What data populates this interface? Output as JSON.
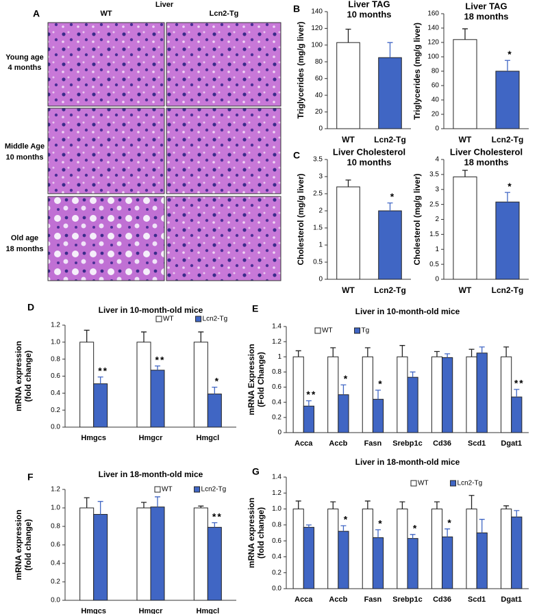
{
  "panel_a": {
    "panel_label": "A",
    "title": "Liver",
    "columns": [
      "WT",
      "Lcn2-Tg"
    ],
    "rows": [
      [
        "Young age",
        "4 months"
      ],
      [
        "Middle Age",
        "10 months"
      ],
      [
        "Old age",
        "18 months"
      ]
    ]
  },
  "chart_data": [
    {
      "type": "bar",
      "panel_label": "B",
      "title": "Liver TAG",
      "subtitle": "10 months",
      "ylabel": [
        "Triglycerides (mg/g liver)"
      ],
      "categories": [
        "WT",
        "Lcn2-Tg"
      ],
      "values": [
        103,
        85
      ],
      "errors": [
        16,
        18
      ],
      "colors": [
        "#ffffff",
        "#4066c4"
      ],
      "significance": [
        null,
        null
      ],
      "ylim": [
        0,
        140
      ],
      "yticks": [
        0,
        20,
        40,
        60,
        80,
        100,
        120,
        140
      ]
    },
    {
      "type": "bar",
      "title": "Liver TAG",
      "subtitle": "18 months",
      "ylabel": [
        "Triglycerides (mg/g liver)"
      ],
      "categories": [
        "WT",
        "Lcn2-Tg"
      ],
      "values": [
        124,
        80
      ],
      "errors": [
        15,
        15
      ],
      "colors": [
        "#ffffff",
        "#4066c4"
      ],
      "significance": [
        null,
        "*"
      ],
      "ylim": [
        0,
        160
      ],
      "yticks": [
        0,
        20,
        40,
        60,
        80,
        100,
        120,
        140,
        160
      ]
    },
    {
      "type": "bar",
      "panel_label": "C",
      "title": "Liver Cholesterol",
      "subtitle": "10 months",
      "ylabel": [
        "Cholesterol (mg/g liver)"
      ],
      "categories": [
        "WT",
        "Lcn2-Tg"
      ],
      "values": [
        2.7,
        2.0
      ],
      "errors": [
        0.2,
        0.23
      ],
      "colors": [
        "#ffffff",
        "#4066c4"
      ],
      "significance": [
        null,
        "*"
      ],
      "ylim": [
        0,
        3.5
      ],
      "yticks": [
        0,
        0.5,
        1,
        1.5,
        2,
        2.5,
        3,
        3.5
      ]
    },
    {
      "type": "bar",
      "title": "Liver Cholesterol",
      "subtitle": "18 months",
      "ylabel": [
        "Cholesterol (mg/g liver)"
      ],
      "categories": [
        "WT",
        "Lcn2-Tg"
      ],
      "values": [
        3.42,
        2.58
      ],
      "errors": [
        0.22,
        0.32
      ],
      "colors": [
        "#ffffff",
        "#4066c4"
      ],
      "significance": [
        null,
        "*"
      ],
      "ylim": [
        0,
        4
      ],
      "yticks": [
        0,
        0.5,
        1,
        1.5,
        2,
        2.5,
        3,
        3.5,
        4
      ]
    },
    {
      "type": "grouped_bar",
      "panel_label": "D",
      "title": "Liver in 10-month-old mice",
      "ylabel": [
        "mRNA expression",
        "(fold change)"
      ],
      "categories": [
        "Hmgcs",
        "Hmgcr",
        "Hmgcl"
      ],
      "series": [
        {
          "name": "WT",
          "color": "#ffffff",
          "values": [
            1,
            1,
            1
          ],
          "errors": [
            0.14,
            0.12,
            0.12
          ],
          "significance": [
            null,
            null,
            null
          ]
        },
        {
          "name": "Lcn2-Tg",
          "color": "#4066c4",
          "values": [
            0.51,
            0.67,
            0.39
          ],
          "errors": [
            0.08,
            0.05,
            0.08
          ],
          "significance": [
            "**",
            "**",
            "*"
          ]
        }
      ],
      "ylim": [
        0,
        1.2
      ],
      "yticks": [
        {
          "value": 0,
          "label": "0.0"
        },
        {
          "value": 0.2,
          "label": "0.2"
        },
        {
          "value": 0.4,
          "label": "0.4"
        },
        {
          "value": 0.6,
          "label": "0.6"
        },
        {
          "value": 0.8,
          "label": "0.8"
        },
        {
          "value": 1,
          "label": "1.0"
        },
        {
          "value": 1.2,
          "label": "1.2"
        }
      ]
    },
    {
      "type": "grouped_bar",
      "panel_label": "E",
      "title": "Liver in 10-month-old mice",
      "ylabel": [
        "mRNA Expression",
        "(Fold Change)"
      ],
      "categories": [
        "Acca",
        "Accb",
        "Fasn",
        "Srebp1c",
        "Cd36",
        "Scd1",
        "Dgat1"
      ],
      "series": [
        {
          "name": "WT",
          "color": "#ffffff",
          "values": [
            1,
            1,
            1,
            1,
            1,
            1,
            1
          ],
          "errors": [
            0.08,
            0.12,
            0.12,
            0.15,
            0.07,
            0.1,
            0.13
          ],
          "significance": [
            null,
            null,
            null,
            null,
            null,
            null,
            null
          ]
        },
        {
          "name": "Tg",
          "color": "#4066c4",
          "values": [
            0.35,
            0.5,
            0.44,
            0.73,
            0.99,
            1.05,
            0.47
          ],
          "errors": [
            0.07,
            0.13,
            0.12,
            0.07,
            0.05,
            0.08,
            0.1
          ],
          "significance": [
            "**",
            "*",
            "*",
            null,
            null,
            null,
            "**"
          ]
        }
      ],
      "ylim": [
        0,
        1.4
      ],
      "yticks": [
        0,
        0.2,
        0.4,
        0.6,
        0.8,
        1,
        1.2,
        1.4
      ]
    },
    {
      "type": "grouped_bar",
      "panel_label": "F",
      "title": "Liver in 18-month-old mice",
      "ylabel": [
        "mRNA expression",
        "(fold change)"
      ],
      "categories": [
        "Hmgcs",
        "Hmgcr",
        "Hmgcl"
      ],
      "series": [
        {
          "name": "WT",
          "color": "#ffffff",
          "values": [
            1,
            1,
            1
          ],
          "errors": [
            0.11,
            0.06,
            0.02
          ],
          "significance": [
            null,
            null,
            null
          ]
        },
        {
          "name": "Lcn2-Tg",
          "color": "#4066c4",
          "values": [
            0.93,
            1.01,
            0.79
          ],
          "errors": [
            0.14,
            0.11,
            0.05
          ],
          "significance": [
            null,
            null,
            "**"
          ]
        }
      ],
      "ylim": [
        0,
        1.2
      ],
      "yticks": [
        {
          "value": 0,
          "label": "0.0"
        },
        {
          "value": 0.2,
          "label": "0.2"
        },
        {
          "value": 0.4,
          "label": "0.4"
        },
        {
          "value": 0.6,
          "label": "0.6"
        },
        {
          "value": 0.8,
          "label": "0.8"
        },
        {
          "value": 1,
          "label": "1.0"
        },
        {
          "value": 1.2,
          "label": "1.2"
        }
      ]
    },
    {
      "type": "grouped_bar",
      "panel_label": "G",
      "title": "Liver in 18-month-old mice",
      "ylabel": [
        "mRNA expression",
        "(fold change)"
      ],
      "categories": [
        "Acca",
        "Accb",
        "Fasn",
        "Srebp1c",
        "Cd36",
        "Scd1",
        "Dgat1"
      ],
      "series": [
        {
          "name": "WT",
          "color": "#ffffff",
          "values": [
            1,
            1,
            1,
            1,
            1,
            1,
            1
          ],
          "errors": [
            0.1,
            0.09,
            0.1,
            0.09,
            0.09,
            0.17,
            0.04
          ],
          "significance": [
            null,
            null,
            null,
            null,
            null,
            null,
            null
          ]
        },
        {
          "name": "Lcn2-Tg",
          "color": "#4066c4",
          "values": [
            0.77,
            0.72,
            0.64,
            0.63,
            0.65,
            0.7,
            0.9
          ],
          "errors": [
            0.03,
            0.07,
            0.1,
            0.05,
            0.1,
            0.17,
            0.08
          ],
          "significance": [
            null,
            "*",
            "*",
            "*",
            "*",
            null,
            null
          ]
        }
      ],
      "ylim": [
        0,
        1.4
      ],
      "yticks": [
        {
          "value": 0,
          "label": "0.0"
        },
        {
          "value": 0.2,
          "label": "0.2"
        },
        {
          "value": 0.4,
          "label": "0.4"
        },
        {
          "value": 0.6,
          "label": "0.6"
        },
        {
          "value": 0.8,
          "label": "0.8"
        },
        {
          "value": 1,
          "label": "1.0"
        },
        {
          "value": 1.2,
          "label": "1.2"
        },
        {
          "value": 1.4,
          "label": "1.4"
        }
      ]
    }
  ]
}
